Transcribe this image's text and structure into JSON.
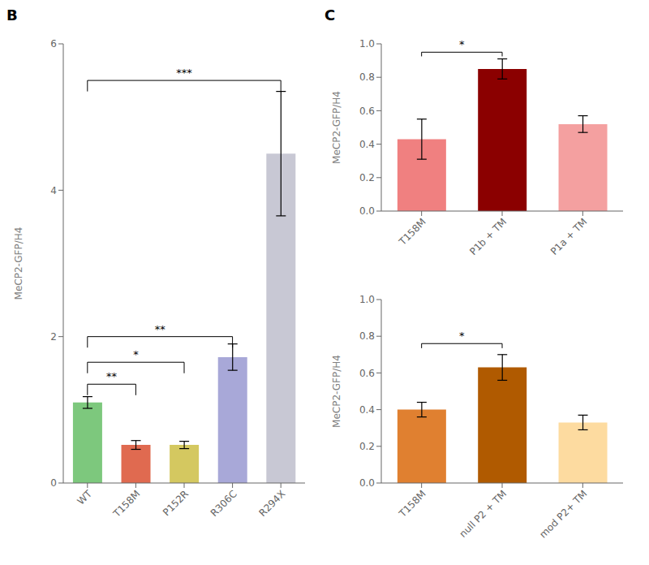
{
  "chart_data": [
    {
      "type": "bar",
      "title": "B",
      "categories": [
        "WT",
        "T158M",
        "P152R",
        "R306C",
        "R294X"
      ],
      "values": [
        1.1,
        0.52,
        0.52,
        1.72,
        4.5
      ],
      "errors": [
        0.08,
        0.06,
        0.05,
        0.18,
        0.85
      ],
      "colors": [
        "#7DC87D",
        "#E06A50",
        "#D4C860",
        "#A8A8D8",
        "#C8C8D4"
      ],
      "ylabel": "MeCP2-GFP/H4",
      "ylim": [
        0,
        6.0
      ],
      "yticks": [
        0,
        2,
        4,
        6
      ],
      "annotations": [
        {
          "x1": "WT",
          "x2": "T158M",
          "y": 1.35,
          "label": "**"
        },
        {
          "x1": "WT",
          "x2": "P152R",
          "y": 1.65,
          "label": "*"
        },
        {
          "x1": "WT",
          "x2": "R306C",
          "y": 2.0,
          "label": "**"
        },
        {
          "x1": "WT",
          "x2": "R294X",
          "y": 5.5,
          "label": "***"
        }
      ]
    },
    {
      "type": "bar",
      "title": "C",
      "categories": [
        "T158M",
        "P1b + TM",
        "P1a + TM"
      ],
      "values": [
        0.43,
        0.85,
        0.52
      ],
      "errors": [
        0.12,
        0.06,
        0.05
      ],
      "colors": [
        "#F08080",
        "#8B0000",
        "#F4A0A0"
      ],
      "ylabel": "MeCP2-GFP/H4",
      "ylim": [
        0,
        1.0
      ],
      "yticks": [
        {
          "value": 0,
          "label": "0.0"
        },
        0.2,
        0.4,
        0.6,
        0.8,
        {
          "value": 1.0,
          "label": "1.0"
        }
      ],
      "annotations": [
        {
          "x1": "T158M",
          "x2": "P1b + TM",
          "y": 0.95,
          "label": "*"
        }
      ]
    },
    {
      "type": "bar",
      "categories": [
        "T158M",
        "null P2 + TM",
        "mod P2+ TM"
      ],
      "values": [
        0.4,
        0.63,
        0.33
      ],
      "errors": [
        0.04,
        0.07,
        0.04
      ],
      "colors": [
        "#E08030",
        "#B05A00",
        "#FDDBA0"
      ],
      "ylabel": "MeCP2-GFP/H4",
      "ylim": [
        0,
        1.0
      ],
      "yticks": [
        {
          "value": 0,
          "label": "0.0"
        },
        0.2,
        0.4,
        0.6,
        0.8,
        {
          "value": 1.0,
          "label": "1.0"
        }
      ],
      "annotations": [
        {
          "x1": "T158M",
          "x2": "null P2 + TM",
          "y": 0.76,
          "label": "*"
        }
      ]
    }
  ]
}
